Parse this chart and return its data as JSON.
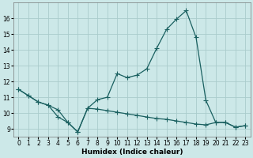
{
  "xlabel": "Humidex (Indice chaleur)",
  "background_color": "#cce8e8",
  "grid_color": "#aacccc",
  "line_color": "#1a6060",
  "upper_x": [
    0,
    1,
    2,
    3,
    4,
    5,
    6,
    7,
    8,
    9,
    10,
    11,
    12,
    13,
    14,
    15,
    16,
    17,
    18,
    19,
    20,
    21,
    22,
    23
  ],
  "upper_y": [
    11.5,
    11.1,
    10.7,
    10.5,
    10.2,
    9.4,
    8.8,
    10.3,
    10.85,
    11.0,
    12.5,
    12.25,
    12.4,
    12.8,
    14.1,
    15.3,
    15.95,
    16.5,
    14.8,
    10.8,
    9.4,
    9.4,
    9.1,
    9.2
  ],
  "lower_x": [
    0,
    1,
    2,
    3,
    4,
    5,
    6,
    7,
    8,
    9,
    10,
    11,
    12,
    13,
    14,
    15,
    16,
    17,
    18,
    19,
    20,
    21,
    22,
    23
  ],
  "lower_y": [
    11.5,
    11.1,
    10.7,
    10.5,
    9.75,
    9.4,
    8.8,
    10.3,
    10.25,
    10.15,
    10.05,
    9.95,
    9.85,
    9.75,
    9.65,
    9.6,
    9.5,
    9.4,
    9.3,
    9.25,
    9.4,
    9.4,
    9.1,
    9.2
  ],
  "xlim": [
    -0.5,
    23.5
  ],
  "ylim": [
    8.5,
    17.0
  ],
  "yticks": [
    9,
    10,
    11,
    12,
    13,
    14,
    15,
    16
  ],
  "xticks": [
    0,
    1,
    2,
    3,
    4,
    5,
    6,
    7,
    8,
    9,
    10,
    11,
    12,
    13,
    14,
    15,
    16,
    17,
    18,
    19,
    20,
    21,
    22,
    23
  ],
  "markersize": 2.0,
  "linewidth": 0.9,
  "fontsize_label": 6.5,
  "fontsize_tick": 5.5
}
